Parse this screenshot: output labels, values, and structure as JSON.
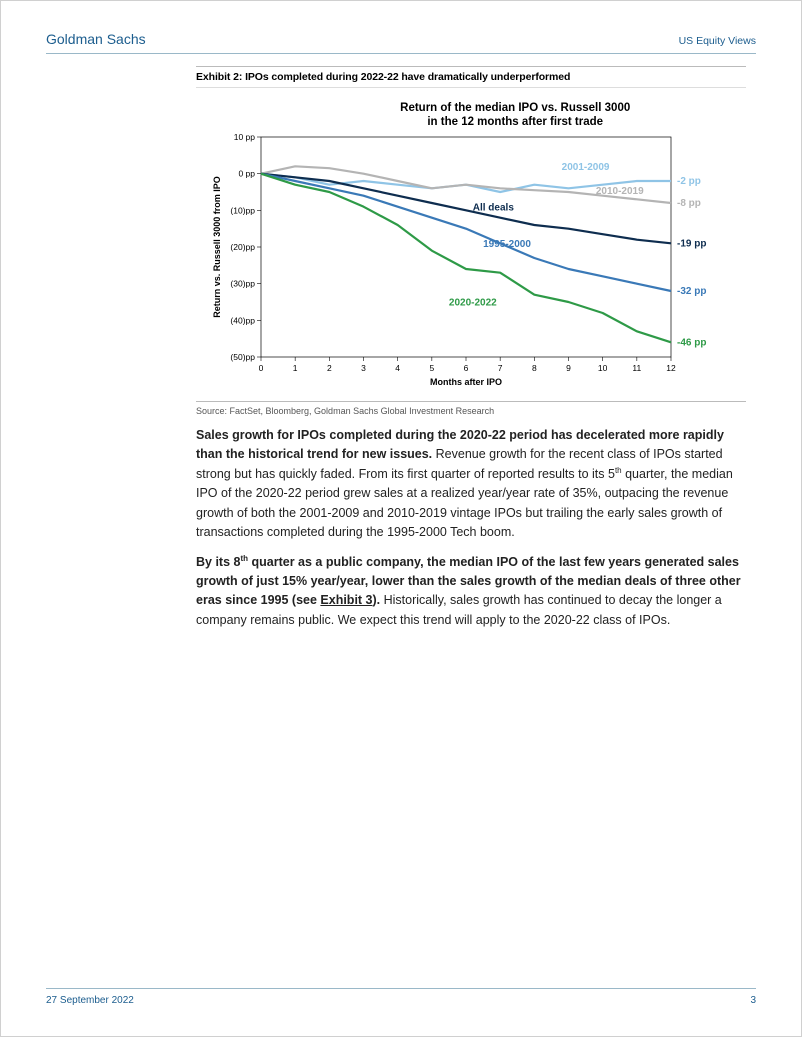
{
  "header": {
    "brand": "Goldman Sachs",
    "section": "US Equity Views"
  },
  "footer": {
    "date": "27 September 2022",
    "page": "3"
  },
  "exhibit": {
    "title": "Exhibit 2: IPOs completed during 2022-22 have dramatically underperformed",
    "source": "Source: FactSet, Bloomberg, Goldman Sachs Global Investment Research"
  },
  "chart": {
    "type": "line",
    "title_line1": "Return of the median IPO vs. Russell 3000",
    "title_line2": "in the 12 months after first trade",
    "xlabel": "Months after IPO",
    "ylabel": "Return vs. Russell 3000 from IPO",
    "xlim": [
      0,
      12
    ],
    "xtick_step": 1,
    "ylim": [
      -50,
      10
    ],
    "ytick_step": 10,
    "yticks": [
      {
        "v": 10,
        "label": "10 pp"
      },
      {
        "v": 0,
        "label": "0 pp"
      },
      {
        "v": -10,
        "label": "(10)pp"
      },
      {
        "v": -20,
        "label": "(20)pp"
      },
      {
        "v": -30,
        "label": "(30)pp"
      },
      {
        "v": -40,
        "label": "(40)pp"
      },
      {
        "v": -50,
        "label": "(50)pp"
      }
    ],
    "background_color": "#ffffff",
    "grid": false,
    "line_width": 2.2,
    "series": [
      {
        "name": "2001-2009",
        "color": "#8fc4e6",
        "label_x": 9.5,
        "label_y": 1,
        "end_label": "-2 pp",
        "end_label_y": -2,
        "values": [
          [
            0,
            0
          ],
          [
            1,
            -1
          ],
          [
            2,
            -3
          ],
          [
            3,
            -2
          ],
          [
            4,
            -3
          ],
          [
            5,
            -4
          ],
          [
            6,
            -3
          ],
          [
            7,
            -5
          ],
          [
            8,
            -3
          ],
          [
            9,
            -4
          ],
          [
            10,
            -3
          ],
          [
            11,
            -2
          ],
          [
            12,
            -2
          ]
        ]
      },
      {
        "name": "2010-2019",
        "color": "#b4b4b4",
        "label_x": 10.5,
        "label_y": -5.5,
        "end_label": "-8 pp",
        "end_label_y": -8,
        "values": [
          [
            0,
            0
          ],
          [
            1,
            2
          ],
          [
            2,
            1.5
          ],
          [
            3,
            0
          ],
          [
            4,
            -2
          ],
          [
            5,
            -4
          ],
          [
            6,
            -3
          ],
          [
            7,
            -4
          ],
          [
            8,
            -4.5
          ],
          [
            9,
            -5
          ],
          [
            10,
            -6
          ],
          [
            11,
            -7
          ],
          [
            12,
            -8
          ]
        ]
      },
      {
        "name": "All deals",
        "color": "#0e2d4f",
        "label_x": 6.8,
        "label_y": -10,
        "end_label": "-19 pp",
        "end_label_y": -19,
        "values": [
          [
            0,
            0
          ],
          [
            1,
            -1
          ],
          [
            2,
            -2
          ],
          [
            3,
            -4
          ],
          [
            4,
            -6
          ],
          [
            5,
            -8
          ],
          [
            6,
            -10
          ],
          [
            7,
            -12
          ],
          [
            8,
            -14
          ],
          [
            9,
            -15
          ],
          [
            10,
            -16.5
          ],
          [
            11,
            -18
          ],
          [
            12,
            -19
          ]
        ]
      },
      {
        "name": "1995-2000",
        "color": "#3a79b7",
        "label_x": 7.2,
        "label_y": -20,
        "end_label": "-32 pp",
        "end_label_y": -32,
        "values": [
          [
            0,
            0
          ],
          [
            1,
            -2
          ],
          [
            2,
            -4
          ],
          [
            3,
            -6
          ],
          [
            4,
            -9
          ],
          [
            5,
            -12
          ],
          [
            6,
            -15
          ],
          [
            7,
            -19
          ],
          [
            8,
            -23
          ],
          [
            9,
            -26
          ],
          [
            10,
            -28
          ],
          [
            11,
            -30
          ],
          [
            12,
            -32
          ]
        ]
      },
      {
        "name": "2020-2022",
        "color": "#2e9a47",
        "label_x": 6.2,
        "label_y": -36,
        "end_label": "-46 pp",
        "end_label_y": -46,
        "values": [
          [
            0,
            0
          ],
          [
            1,
            -3
          ],
          [
            2,
            -5
          ],
          [
            3,
            -9
          ],
          [
            4,
            -14
          ],
          [
            5,
            -21
          ],
          [
            6,
            -26
          ],
          [
            7,
            -27
          ],
          [
            8,
            -33
          ],
          [
            9,
            -35
          ],
          [
            10,
            -38
          ],
          [
            11,
            -43
          ],
          [
            12,
            -46
          ]
        ]
      }
    ]
  },
  "body": {
    "p1_bold": "Sales growth for IPOs completed during the 2020-22 period has decelerated more rapidly than the historical trend for new issues.",
    "p1_rest_a": " Revenue growth for the recent class of IPOs started strong but has quickly faded. From its first quarter of reported results to its 5",
    "p1_sup1": "th",
    "p1_rest_b": " quarter, the median IPO of the 2020-22 period grew sales at a realized year/year rate of 35%, outpacing the revenue growth of both the 2001-2009 and 2010-2019 vintage IPOs but trailing the early sales growth of transactions completed during the 1995-2000 Tech boom.",
    "p2_bold_a": "By its 8",
    "p2_sup": "th",
    "p2_bold_b": " quarter as a public company, the median IPO of the last few years generated sales growth of just 15% year/year, lower than the sales growth of the median deals of three other eras since 1995 (see ",
    "p2_link": "Exhibit 3",
    "p2_bold_c": ").",
    "p2_rest": " Historically, sales growth has continued to decay the longer a company remains public. We expect this trend will apply to the 2020-22 class of IPOs."
  }
}
